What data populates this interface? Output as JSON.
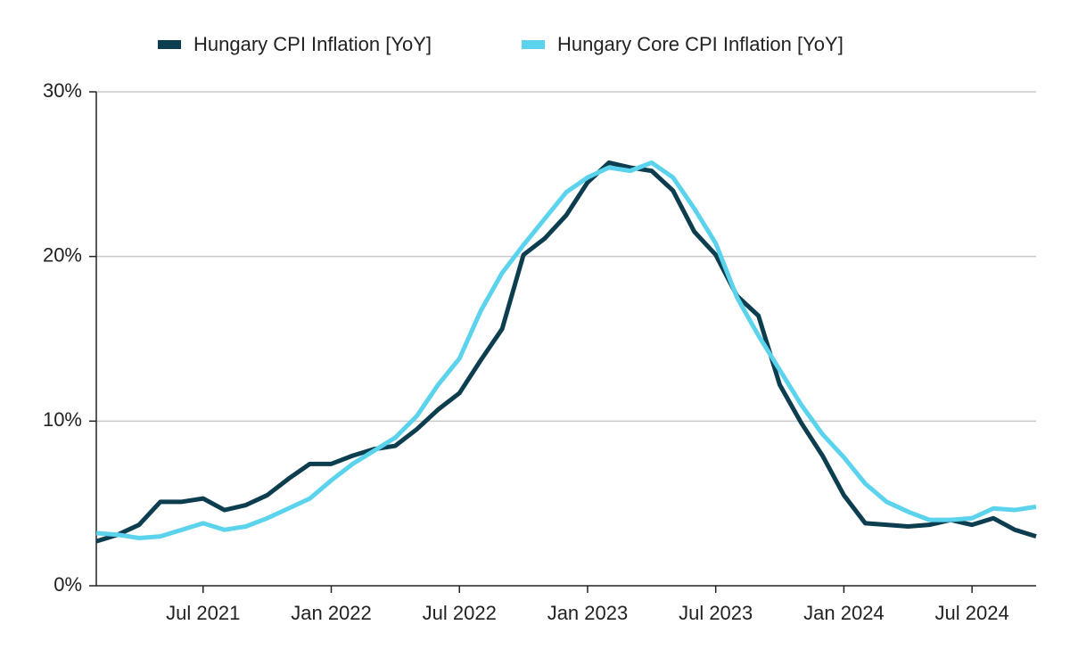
{
  "chart_data": {
    "type": "line",
    "x": [
      "2021-02",
      "2021-03",
      "2021-04",
      "2021-05",
      "2021-06",
      "2021-07",
      "2021-08",
      "2021-09",
      "2021-10",
      "2021-11",
      "2021-12",
      "2022-01",
      "2022-02",
      "2022-03",
      "2022-04",
      "2022-05",
      "2022-06",
      "2022-07",
      "2022-08",
      "2022-09",
      "2022-10",
      "2022-11",
      "2022-12",
      "2023-01",
      "2023-02",
      "2023-03",
      "2023-04",
      "2023-05",
      "2023-06",
      "2023-07",
      "2023-08",
      "2023-09",
      "2023-10",
      "2023-11",
      "2023-12",
      "2024-01",
      "2024-02",
      "2024-03",
      "2024-04",
      "2024-05",
      "2024-06",
      "2024-07",
      "2024-08",
      "2024-09",
      "2024-10"
    ],
    "series": [
      {
        "name": "Hungary CPI Inflation [YoY]",
        "color": "#0d3e4f",
        "values": [
          2.7,
          3.1,
          3.7,
          5.1,
          5.1,
          5.3,
          4.6,
          4.9,
          5.5,
          6.5,
          7.4,
          7.4,
          7.9,
          8.3,
          8.5,
          9.5,
          10.7,
          11.7,
          13.7,
          15.6,
          20.1,
          21.1,
          22.5,
          24.5,
          25.7,
          25.4,
          25.2,
          24.0,
          21.5,
          20.1,
          17.6,
          16.4,
          12.2,
          9.9,
          7.9,
          5.5,
          3.8,
          3.7,
          3.6,
          3.7,
          4.0,
          3.7,
          4.1,
          3.4,
          3.0
        ]
      },
      {
        "name": "Hungary Core CPI Inflation [YoY]",
        "color": "#5bd3ec",
        "values": [
          3.2,
          3.1,
          2.9,
          3.0,
          3.4,
          3.8,
          3.4,
          3.6,
          4.1,
          4.7,
          5.3,
          6.4,
          7.4,
          8.2,
          9.0,
          10.3,
          12.2,
          13.8,
          16.7,
          19.0,
          20.7,
          22.3,
          23.9,
          24.8,
          25.4,
          25.2,
          25.7,
          24.8,
          22.9,
          20.8,
          17.5,
          15.2,
          13.1,
          11.0,
          9.2,
          7.8,
          6.2,
          5.1,
          4.5,
          4.0,
          4.0,
          4.1,
          4.7,
          4.6,
          4.8
        ]
      }
    ],
    "xlim": [
      "2021-02",
      "2024-10"
    ],
    "xticks": [
      {
        "value": "2021-07",
        "label": "Jul 2021"
      },
      {
        "value": "2022-01",
        "label": "Jan 2022"
      },
      {
        "value": "2022-07",
        "label": "Jul 2022"
      },
      {
        "value": "2023-01",
        "label": "Jan 2023"
      },
      {
        "value": "2023-07",
        "label": "Jul 2023"
      },
      {
        "value": "2024-01",
        "label": "Jan 2024"
      },
      {
        "value": "2024-07",
        "label": "Jul 2024"
      }
    ],
    "ylim": [
      0,
      30
    ],
    "yticks": [
      {
        "value": 0,
        "label": "0%"
      },
      {
        "value": 10,
        "label": "10%"
      },
      {
        "value": 20,
        "label": "20%"
      },
      {
        "value": 30,
        "label": "30%"
      }
    ],
    "grid": true,
    "legend": "top"
  }
}
